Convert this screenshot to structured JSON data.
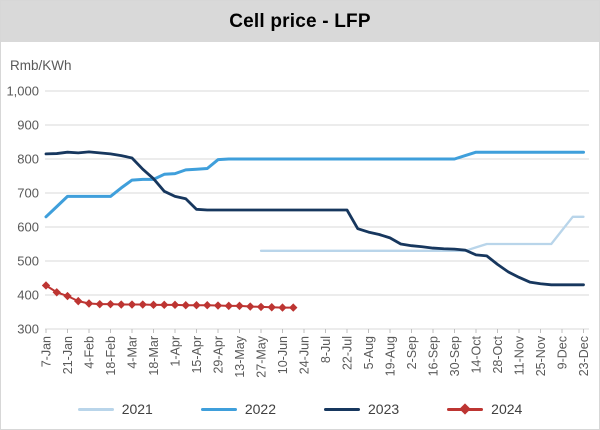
{
  "title": "Cell price - LFP",
  "chart_data": {
    "type": "line",
    "title": "Cell price - LFP",
    "y_unit_label": "Rmb/KWh",
    "ylim": [
      300,
      1000
    ],
    "y_tick_values": [
      1000,
      900,
      800,
      700,
      600,
      500,
      400,
      300
    ],
    "y_tick_labels": [
      "1,000",
      "900",
      "800",
      "700",
      "600",
      "500",
      "400",
      "300"
    ],
    "grid": "horizontal",
    "legend_position": "bottom",
    "x_note": "weekly points; tick label every 2 weeks",
    "categories": [
      "7-Jan",
      "21-Jan",
      "4-Feb",
      "18-Feb",
      "4-Mar",
      "18-Mar",
      "1-Apr",
      "15-Apr",
      "29-Apr",
      "13-May",
      "27-May",
      "10-Jun",
      "24-Jun",
      "8-Jul",
      "22-Jul",
      "5-Aug",
      "19-Aug",
      "2-Sep",
      "16-Sep",
      "30-Sep",
      "14-Oct",
      "28-Oct",
      "11-Nov",
      "25-Nov",
      "9-Dec",
      "23-Dec"
    ],
    "series": [
      {
        "name": "2021",
        "color": "#b9d5ea",
        "width": 2.3,
        "start_week": 20,
        "values": [
          530,
          530,
          530,
          530,
          530,
          530,
          530,
          530,
          530,
          530,
          530,
          530,
          530,
          530,
          530,
          530,
          530,
          530,
          530,
          530,
          540,
          550,
          550,
          550,
          550,
          550,
          550,
          550,
          590,
          630,
          630
        ]
      },
      {
        "name": "2022",
        "color": "#3f9fdb",
        "width": 3,
        "start_week": 0,
        "values": [
          630,
          660,
          690,
          690,
          690,
          690,
          690,
          715,
          738,
          740,
          740,
          755,
          757,
          768,
          770,
          772,
          798,
          800,
          800,
          800,
          800,
          800,
          800,
          800,
          800,
          800,
          800,
          800,
          800,
          800,
          800,
          800,
          800,
          800,
          800,
          800,
          800,
          800,
          800,
          810,
          820,
          820,
          820,
          820,
          820,
          820,
          820,
          820,
          820,
          820,
          820
        ]
      },
      {
        "name": "2023",
        "color": "#17375e",
        "width": 2.8,
        "start_week": 0,
        "values": [
          815,
          816,
          820,
          818,
          821,
          818,
          815,
          810,
          803,
          770,
          742,
          705,
          690,
          683,
          652,
          650,
          650,
          650,
          650,
          650,
          650,
          650,
          650,
          650,
          650,
          650,
          650,
          650,
          650,
          595,
          585,
          578,
          568,
          550,
          545,
          542,
          538,
          536,
          535,
          532,
          518,
          515,
          490,
          468,
          452,
          438,
          433,
          430,
          430,
          430,
          430
        ]
      },
      {
        "name": "2024",
        "color": "#bd3532",
        "width": 2,
        "marker": "diamond",
        "start_week": 0,
        "values": [
          428,
          408,
          397,
          382,
          375,
          373,
          373,
          372,
          372,
          372,
          371,
          371,
          371,
          370,
          370,
          370,
          369,
          368,
          368,
          366,
          365,
          364,
          363,
          363
        ]
      }
    ]
  },
  "colors": {
    "title_bar_bg": "#d9d9d9",
    "title_text": "#000000",
    "axis_text": "#595959",
    "gridline": "#d9d9d9",
    "tick_mark": "#bfbfbf"
  }
}
